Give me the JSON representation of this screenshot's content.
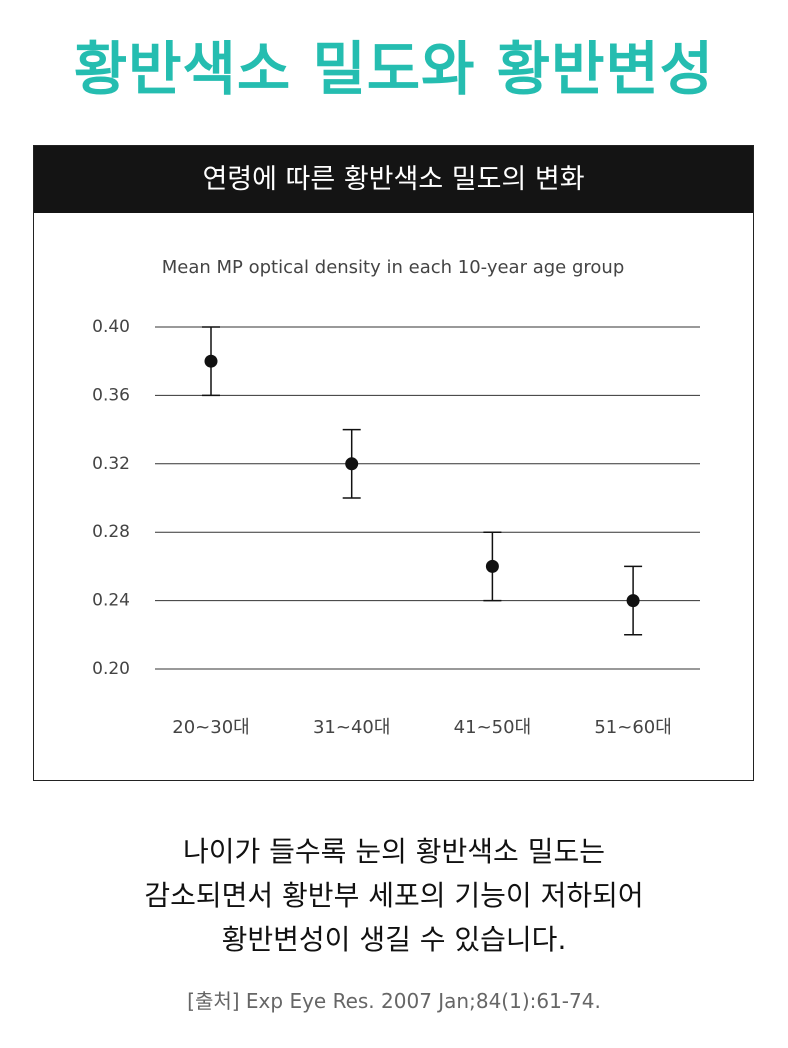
{
  "header": {
    "title": "황반색소 밀도와 황반변성"
  },
  "chart_data": {
    "type": "errorbar",
    "title": "연령에 따른 황반색소 밀도의 변화",
    "subtitle": "Mean MP optical density in each 10-year age group",
    "categories": [
      "20~30대",
      "31~40대",
      "41~50대",
      "51~60대"
    ],
    "values": [
      0.38,
      0.32,
      0.26,
      0.24
    ],
    "errors": [
      0.02,
      0.02,
      0.02,
      0.02
    ],
    "color": "#111111",
    "ylim": [
      0.2,
      0.4
    ],
    "yticks": [
      {
        "value": 0.2,
        "label": "0.20"
      },
      0.24,
      0.28,
      0.32,
      0.36,
      {
        "value": 0.4,
        "label": "0.40"
      }
    ],
    "grid": true
  },
  "caption": {
    "lines": [
      "나이가 들수록 눈의 황반색소 밀도는",
      "감소되면서 황반부 세포의 기능이 저하되어",
      "황반변성이 생길 수 있습니다."
    ]
  },
  "source": "[출처] Exp Eye Res. 2007 Jan;84(1):61-74."
}
